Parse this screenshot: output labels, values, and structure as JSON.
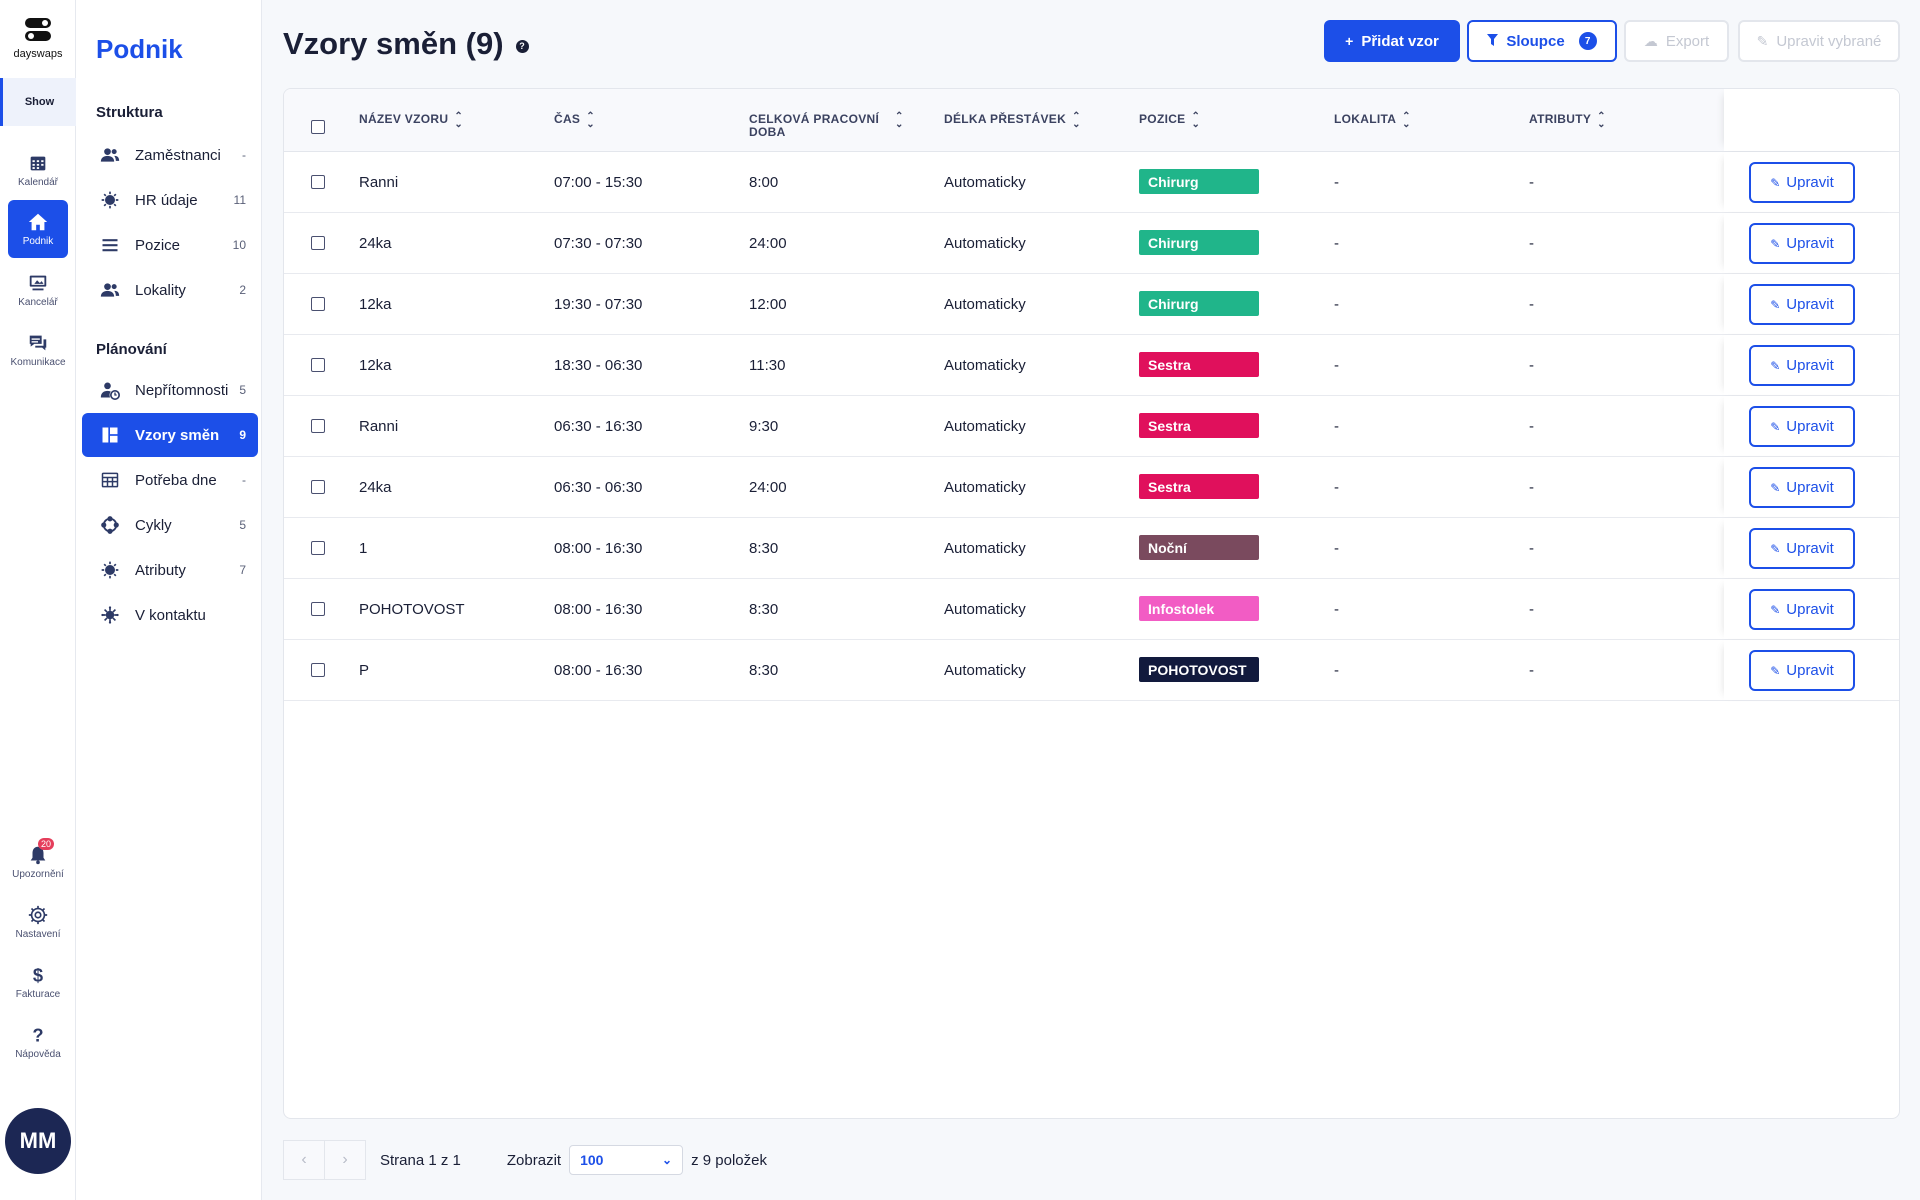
{
  "app": {
    "logo_text": "dayswaps",
    "rail_show": "Show",
    "rail_items": [
      {
        "label": "Kalendář",
        "icon": "calendar-icon"
      },
      {
        "label": "Podnik",
        "icon": "home-icon"
      },
      {
        "label": "Kancelář",
        "icon": "office-icon"
      },
      {
        "label": "Komunikace",
        "icon": "chat-icon"
      }
    ],
    "rail_bottom": [
      {
        "label": "Upozornění",
        "icon": "bell-icon",
        "badge": "20"
      },
      {
        "label": "Nastavení",
        "icon": "gear-icon"
      },
      {
        "label": "Fakturace",
        "icon": "dollar-icon"
      },
      {
        "label": "Nápověda",
        "icon": "question-icon"
      }
    ],
    "avatar_initials": "MM"
  },
  "sidebar": {
    "title": "Podnik",
    "sections": [
      {
        "title": "Struktura",
        "items": [
          {
            "label": "Zaměstnanci",
            "count": "-",
            "icon": "people-icon"
          },
          {
            "label": "HR údaje",
            "count": "11",
            "icon": "badge-icon"
          },
          {
            "label": "Pozice",
            "count": "10",
            "icon": "list-icon"
          },
          {
            "label": "Lokality",
            "count": "2",
            "icon": "people-icon"
          }
        ]
      },
      {
        "title": "Plánování",
        "items": [
          {
            "label": "Nepřítomnosti",
            "count": "5",
            "icon": "person-clock-icon"
          },
          {
            "label": "Vzory směn",
            "count": "9",
            "icon": "grid-icon",
            "active": true
          },
          {
            "label": "Potřeba dne",
            "count": "-",
            "icon": "calendar-grid-icon"
          },
          {
            "label": "Cykly",
            "count": "5",
            "icon": "cycle-icon"
          },
          {
            "label": "Atributy",
            "count": "7",
            "icon": "badge-icon"
          },
          {
            "label": "V kontaktu",
            "count": "",
            "icon": "virus-icon"
          }
        ]
      }
    ]
  },
  "header": {
    "title": "Vzory směn (9)",
    "add_button": "Přidat vzor",
    "columns_button": "Sloupce",
    "columns_count": "7",
    "export_button": "Export",
    "edit_selected_button": "Upravit vybrané"
  },
  "table": {
    "columns": [
      "NÁZEV VZORU",
      "ČAS",
      "CELKOVÁ PRACOVNÍ DOBA",
      "DÉLKA PŘESTÁVEK",
      "POZICE",
      "LOKALITA",
      "ATRIBUTY"
    ],
    "edit_label": "Upravit",
    "rows": [
      {
        "name": "Ranni",
        "time": "07:00 - 15:30",
        "total": "8:00",
        "break": "Automaticky",
        "position": "Chirurg",
        "color": "#20b58a",
        "location": "-",
        "attributes": "-"
      },
      {
        "name": "24ka",
        "time": "07:30 - 07:30",
        "total": "24:00",
        "break": "Automaticky",
        "position": "Chirurg",
        "color": "#20b58a",
        "location": "-",
        "attributes": "-"
      },
      {
        "name": "12ka",
        "time": "19:30 - 07:30",
        "total": "12:00",
        "break": "Automaticky",
        "position": "Chirurg",
        "color": "#20b58a",
        "location": "-",
        "attributes": "-"
      },
      {
        "name": "12ka",
        "time": "18:30 - 06:30",
        "total": "11:30",
        "break": "Automaticky",
        "position": "Sestra",
        "color": "#e0105c",
        "location": "-",
        "attributes": "-"
      },
      {
        "name": "Ranni",
        "time": "06:30 - 16:30",
        "total": "9:30",
        "break": "Automaticky",
        "position": "Sestra",
        "color": "#e0105c",
        "location": "-",
        "attributes": "-"
      },
      {
        "name": "24ka",
        "time": "06:30 - 06:30",
        "total": "24:00",
        "break": "Automaticky",
        "position": "Sestra",
        "color": "#e0105c",
        "location": "-",
        "attributes": "-"
      },
      {
        "name": "1",
        "time": "08:00 - 16:30",
        "total": "8:30",
        "break": "Automaticky",
        "position": "Noční",
        "color": "#7a4a5e",
        "location": "-",
        "attributes": "-"
      },
      {
        "name": "POHOTOVOST",
        "time": "08:00 - 16:30",
        "total": "8:30",
        "break": "Automaticky",
        "position": "Infostolek",
        "color": "#f25cc4",
        "location": "-",
        "attributes": "-"
      },
      {
        "name": "P",
        "time": "08:00 - 16:30",
        "total": "8:30",
        "break": "Automaticky",
        "position": "POHOTOVOST",
        "color": "#121a3d",
        "location": "-",
        "attributes": "-"
      }
    ]
  },
  "pagination": {
    "page_text": "Strana 1 z 1",
    "show_label": "Zobrazit",
    "per_page": "100",
    "total_text": "z 9 položek"
  },
  "colors": {
    "accent": "#1c4fe8"
  }
}
